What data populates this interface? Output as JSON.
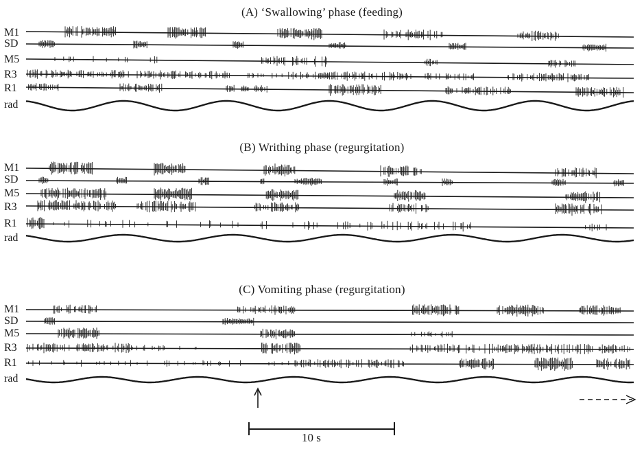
{
  "figure": {
    "panels": [
      {
        "id": "A",
        "title": "(A)  ‘Swallowing’ phase (feeding)",
        "traces": [
          "M1",
          "SD",
          "M5",
          "R3",
          "R1",
          "rad"
        ]
      },
      {
        "id": "B",
        "title": "(B)  Writhing phase (regurgitation)",
        "traces": [
          "M1",
          "SD",
          "M5",
          "R3",
          "R1",
          "rad"
        ]
      },
      {
        "id": "C",
        "title": "(C)  Vomiting phase (regurgitation)",
        "traces": [
          "M1",
          "SD",
          "M5",
          "R3",
          "R1",
          "rad"
        ]
      }
    ],
    "scale_bar": {
      "label": "10 s",
      "seconds": 10
    }
  }
}
